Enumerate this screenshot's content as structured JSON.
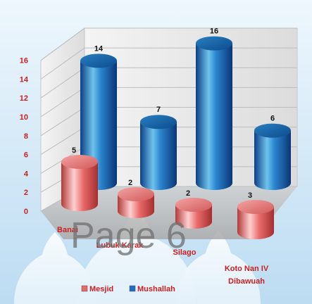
{
  "chart_data": {
    "type": "bar",
    "variant": "3d-cylinder",
    "categories": [
      "Banai",
      "Lubuk Karak",
      "Silago",
      "Koto Nan IV Dibawuah"
    ],
    "series": [
      {
        "name": "Mesjid",
        "values": [
          5,
          2,
          2,
          3
        ],
        "color": "#e86a6a"
      },
      {
        "name": "Mushallah",
        "values": [
          14,
          7,
          16,
          6
        ],
        "color": "#1f6fc0"
      }
    ],
    "y_ticks": [
      "0",
      "2",
      "4",
      "6",
      "8",
      "10",
      "12",
      "14",
      "16"
    ],
    "ylim": [
      0,
      16
    ],
    "grid": true,
    "legend_position": "bottom",
    "data_labels": true
  },
  "watermark": "Page 6"
}
